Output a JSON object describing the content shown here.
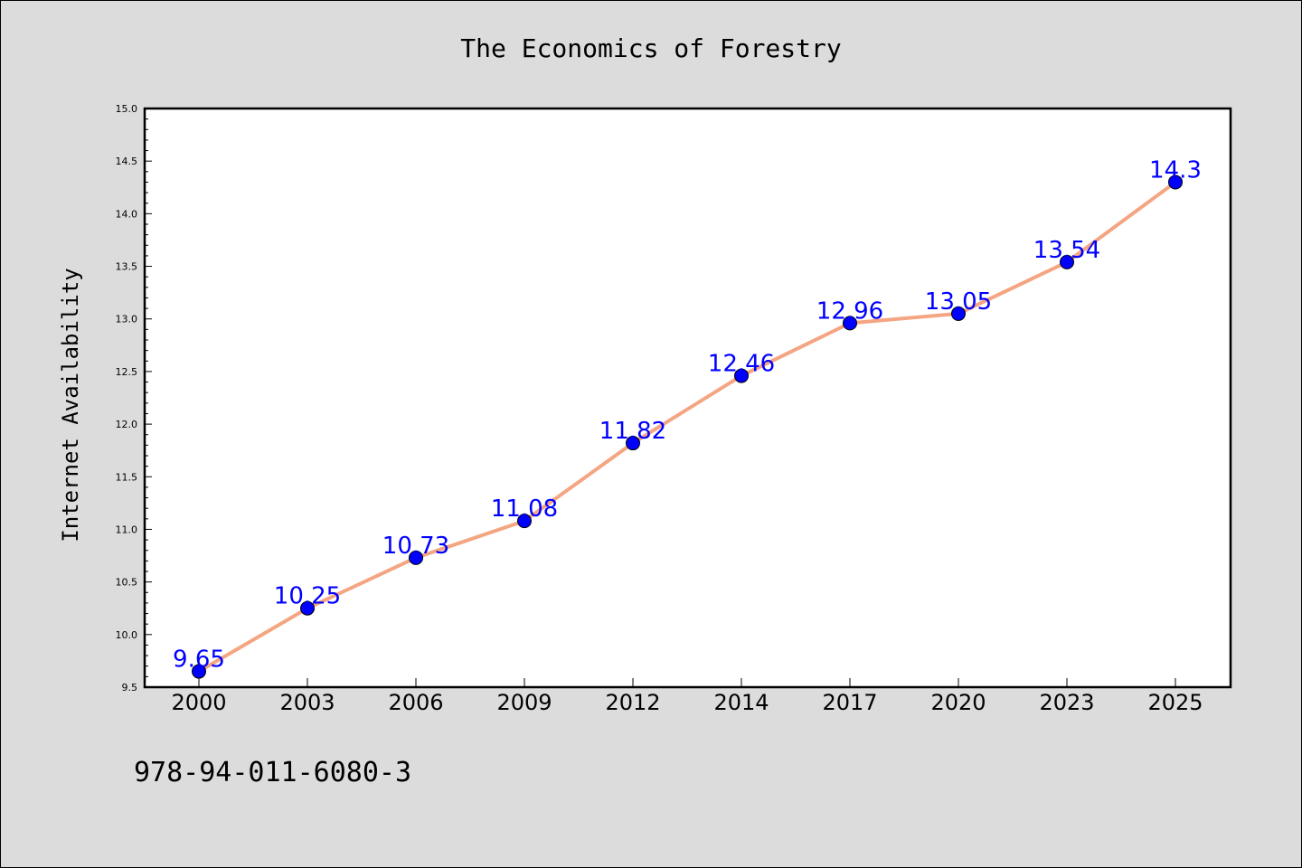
{
  "chart_data": {
    "type": "line",
    "title": "The Economics of Forestry",
    "ylabel": "Internet Availability",
    "xlabel": "",
    "categories": [
      "2000",
      "2003",
      "2006",
      "2009",
      "2012",
      "2014",
      "2017",
      "2020",
      "2023",
      "2025"
    ],
    "series": [
      {
        "values": [
          9.65,
          10.25,
          10.73,
          11.08,
          11.82,
          12.46,
          12.96,
          13.05,
          13.54,
          14.3
        ],
        "data_labels": [
          "9.65",
          "10.25",
          "10.73",
          "11.08",
          "11.82",
          "12.46",
          "12.96",
          "13.05",
          "13.54",
          "14.3"
        ],
        "line_color": "#f4a582",
        "marker_color": "#0000ff"
      }
    ],
    "ylim": [
      9.5,
      15.0
    ],
    "yticks": [
      "9.5",
      "10.0",
      "10.5",
      "11.0",
      "11.5",
      "12.0",
      "12.5",
      "13.0",
      "13.5",
      "14.0",
      "14.5",
      "15.0"
    ],
    "grid": false,
    "legend": "none",
    "data_label_color": "#0000ff"
  },
  "footer_text": "978-94-011-6080-3"
}
